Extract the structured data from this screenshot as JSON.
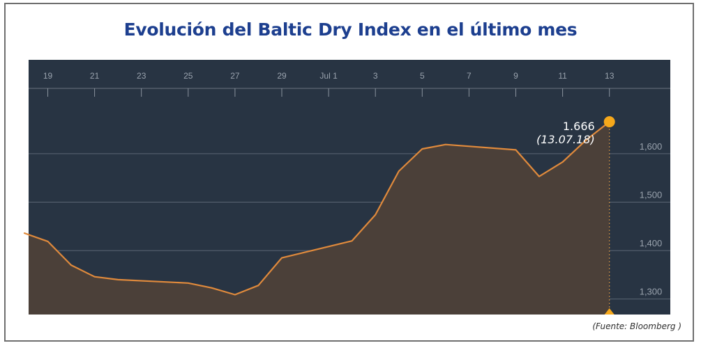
{
  "title": "Evolución del Baltic Dry Index en el último mes",
  "source": "(Fuente: Bloomberg )",
  "colors": {
    "background": "#283443",
    "line": "#e08a3c",
    "area": "#4b4039",
    "grid": "#5b6674",
    "tick_text": "#9aa3ae",
    "marker": "#f6a81b",
    "title": "#1d3f8f"
  },
  "chart_data": {
    "type": "area",
    "title": "Evolución del Baltic Dry Index en el último mes",
    "xlabel": "",
    "ylabel": "",
    "x_tick_labels": [
      "19",
      "21",
      "23",
      "25",
      "27",
      "29",
      "Jul 1",
      "3",
      "5",
      "7",
      "9",
      "11",
      "13"
    ],
    "y_ticks": [
      1300,
      1400,
      1500,
      1600
    ],
    "y_tick_labels": [
      "1,300",
      "1,400",
      "1,500",
      "1,600"
    ],
    "x_range": [
      "18 Jun",
      "15 Jul"
    ],
    "ylim": [
      1268,
      1736
    ],
    "grid": true,
    "series": [
      {
        "points": [
          {
            "x": "2018-06-18",
            "y": 1436
          },
          {
            "x": "2018-06-19",
            "y": 1419
          },
          {
            "x": "2018-06-20",
            "y": 1370
          },
          {
            "x": "2018-06-21",
            "y": 1346
          },
          {
            "x": "2018-06-22",
            "y": 1340
          },
          {
            "x": "2018-06-25",
            "y": 1333
          },
          {
            "x": "2018-06-26",
            "y": 1323
          },
          {
            "x": "2018-06-27",
            "y": 1309
          },
          {
            "x": "2018-06-28",
            "y": 1328
          },
          {
            "x": "2018-06-29",
            "y": 1385
          },
          {
            "x": "2018-07-02",
            "y": 1420
          },
          {
            "x": "2018-07-03",
            "y": 1474
          },
          {
            "x": "2018-07-04",
            "y": 1564
          },
          {
            "x": "2018-07-05",
            "y": 1610
          },
          {
            "x": "2018-07-06",
            "y": 1619
          },
          {
            "x": "2018-07-09",
            "y": 1608
          },
          {
            "x": "2018-07-10",
            "y": 1553
          },
          {
            "x": "2018-07-11",
            "y": 1583
          },
          {
            "x": "2018-07-12",
            "y": 1628
          },
          {
            "x": "2018-07-13",
            "y": 1666
          }
        ]
      }
    ],
    "annotation": {
      "value_label": "1.666",
      "date_label": "(13.07.18)",
      "x": "2018-07-13",
      "y": 1666
    }
  }
}
